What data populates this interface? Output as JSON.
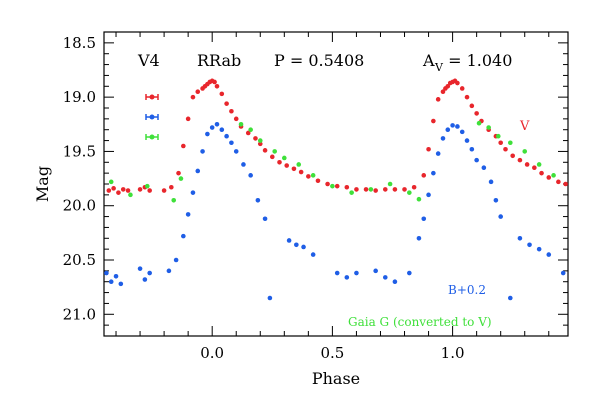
{
  "chart_data": {
    "type": "scatter",
    "title": "",
    "xlabel": "Phase",
    "ylabel": "Mag",
    "xlim": [
      -0.45,
      1.48
    ],
    "ylim": [
      21.2,
      18.4
    ],
    "y_inverted": true,
    "x_ticks": [
      "0.0",
      "0.5",
      "1.0"
    ],
    "x_tick_values": [
      0.0,
      0.5,
      1.0
    ],
    "y_ticks": [
      "18.5",
      "19.0",
      "19.5",
      "20.0",
      "20.5",
      "21.0"
    ],
    "y_tick_values": [
      18.5,
      19.0,
      19.5,
      20.0,
      20.5,
      21.0
    ],
    "header": {
      "star": "V4",
      "type": "RRab",
      "period": "P = 0.5408",
      "amp_prefix": "A",
      "amp_sub": "V",
      "amp_value": " = 1.040"
    },
    "annotations": {
      "v_label": "V",
      "b_label": "B+0.2",
      "g_label": "Gaia G (converted to V)"
    },
    "colors": {
      "V": "#e8262c",
      "B": "#1f5ee6",
      "G": "#3fe03a",
      "axis": "#000000"
    },
    "series": [
      {
        "key": "V",
        "x": [
          -0.43,
          -0.41,
          -0.39,
          -0.37,
          -0.35,
          -0.3,
          -0.28,
          -0.26,
          -0.2,
          -0.17,
          -0.14,
          -0.12,
          -0.1,
          -0.08,
          -0.06,
          -0.04,
          -0.03,
          -0.02,
          -0.01,
          0.0,
          0.01,
          0.02,
          0.04,
          0.06,
          0.08,
          0.1,
          0.12,
          0.15,
          0.18,
          0.2,
          0.22,
          0.25,
          0.28,
          0.31,
          0.34,
          0.37,
          0.4,
          0.44,
          0.48,
          0.52,
          0.56,
          0.6,
          0.64,
          0.68,
          0.72,
          0.76,
          0.8,
          0.84,
          0.88,
          0.9,
          0.92,
          0.94,
          0.96,
          0.97,
          0.98,
          0.99,
          1.0,
          1.01,
          1.02,
          1.04,
          1.06,
          1.08,
          1.1,
          1.12,
          1.15,
          1.18,
          1.2,
          1.22,
          1.25,
          1.28,
          1.31,
          1.34,
          1.37,
          1.4,
          1.44,
          1.47
        ],
        "y": [
          19.86,
          19.84,
          19.88,
          19.85,
          19.86,
          19.85,
          19.83,
          19.86,
          19.86,
          19.83,
          19.7,
          19.45,
          19.2,
          19.0,
          18.95,
          18.92,
          18.9,
          18.88,
          18.86,
          18.85,
          18.86,
          18.9,
          18.97,
          19.06,
          19.13,
          19.2,
          19.27,
          19.33,
          19.38,
          19.43,
          19.49,
          19.55,
          19.6,
          19.63,
          19.66,
          19.69,
          19.73,
          19.77,
          19.8,
          19.82,
          19.83,
          19.85,
          19.85,
          19.86,
          19.85,
          19.85,
          19.85,
          19.83,
          19.72,
          19.48,
          19.22,
          19.02,
          18.95,
          18.92,
          18.9,
          18.87,
          18.86,
          18.85,
          18.87,
          18.92,
          19.0,
          19.08,
          19.15,
          19.22,
          19.3,
          19.36,
          19.42,
          19.48,
          19.54,
          19.58,
          19.62,
          19.65,
          19.7,
          19.74,
          19.78,
          19.8
        ]
      },
      {
        "key": "B",
        "x": [
          -0.44,
          -0.42,
          -0.4,
          -0.38,
          -0.3,
          -0.28,
          -0.26,
          -0.18,
          -0.15,
          -0.12,
          -0.1,
          -0.08,
          -0.06,
          -0.04,
          -0.02,
          0.0,
          0.02,
          0.04,
          0.06,
          0.08,
          0.1,
          0.13,
          0.16,
          0.19,
          0.22,
          0.24,
          0.32,
          0.35,
          0.38,
          0.42,
          0.52,
          0.56,
          0.6,
          0.68,
          0.72,
          0.76,
          0.82,
          0.86,
          0.88,
          0.9,
          0.92,
          0.94,
          0.96,
          0.98,
          1.0,
          1.02,
          1.04,
          1.06,
          1.08,
          1.1,
          1.13,
          1.16,
          1.18,
          1.2,
          1.24,
          1.28,
          1.32,
          1.36,
          1.4,
          1.46
        ],
        "y": [
          20.62,
          20.7,
          20.65,
          20.72,
          20.58,
          20.68,
          20.62,
          20.6,
          20.5,
          20.28,
          20.08,
          19.88,
          19.68,
          19.5,
          19.34,
          19.28,
          19.25,
          19.3,
          19.36,
          19.42,
          19.5,
          19.62,
          19.72,
          19.95,
          20.12,
          20.85,
          20.32,
          20.36,
          20.38,
          20.45,
          20.62,
          20.66,
          20.62,
          20.6,
          20.66,
          20.7,
          20.62,
          20.3,
          20.12,
          19.9,
          19.7,
          19.52,
          19.38,
          19.3,
          19.26,
          19.27,
          19.32,
          19.4,
          19.48,
          19.58,
          19.65,
          19.78,
          19.95,
          20.1,
          20.85,
          20.3,
          20.36,
          20.4,
          20.45,
          20.62
        ]
      },
      {
        "key": "G",
        "x": [
          -0.42,
          -0.34,
          -0.27,
          -0.16,
          -0.13,
          0.12,
          0.16,
          0.2,
          0.26,
          0.3,
          0.36,
          0.42,
          0.5,
          0.58,
          0.66,
          0.74,
          0.82,
          0.86,
          1.11,
          1.15,
          1.19,
          1.24,
          1.3,
          1.36,
          1.42
        ],
        "y": [
          19.78,
          19.9,
          19.82,
          19.95,
          19.75,
          19.25,
          19.3,
          19.4,
          19.5,
          19.56,
          19.62,
          19.72,
          19.82,
          19.88,
          19.85,
          19.8,
          19.88,
          19.94,
          19.24,
          19.28,
          19.36,
          19.42,
          19.5,
          19.62,
          19.72
        ]
      }
    ],
    "legend_errorbars": [
      "V",
      "B",
      "G"
    ]
  }
}
